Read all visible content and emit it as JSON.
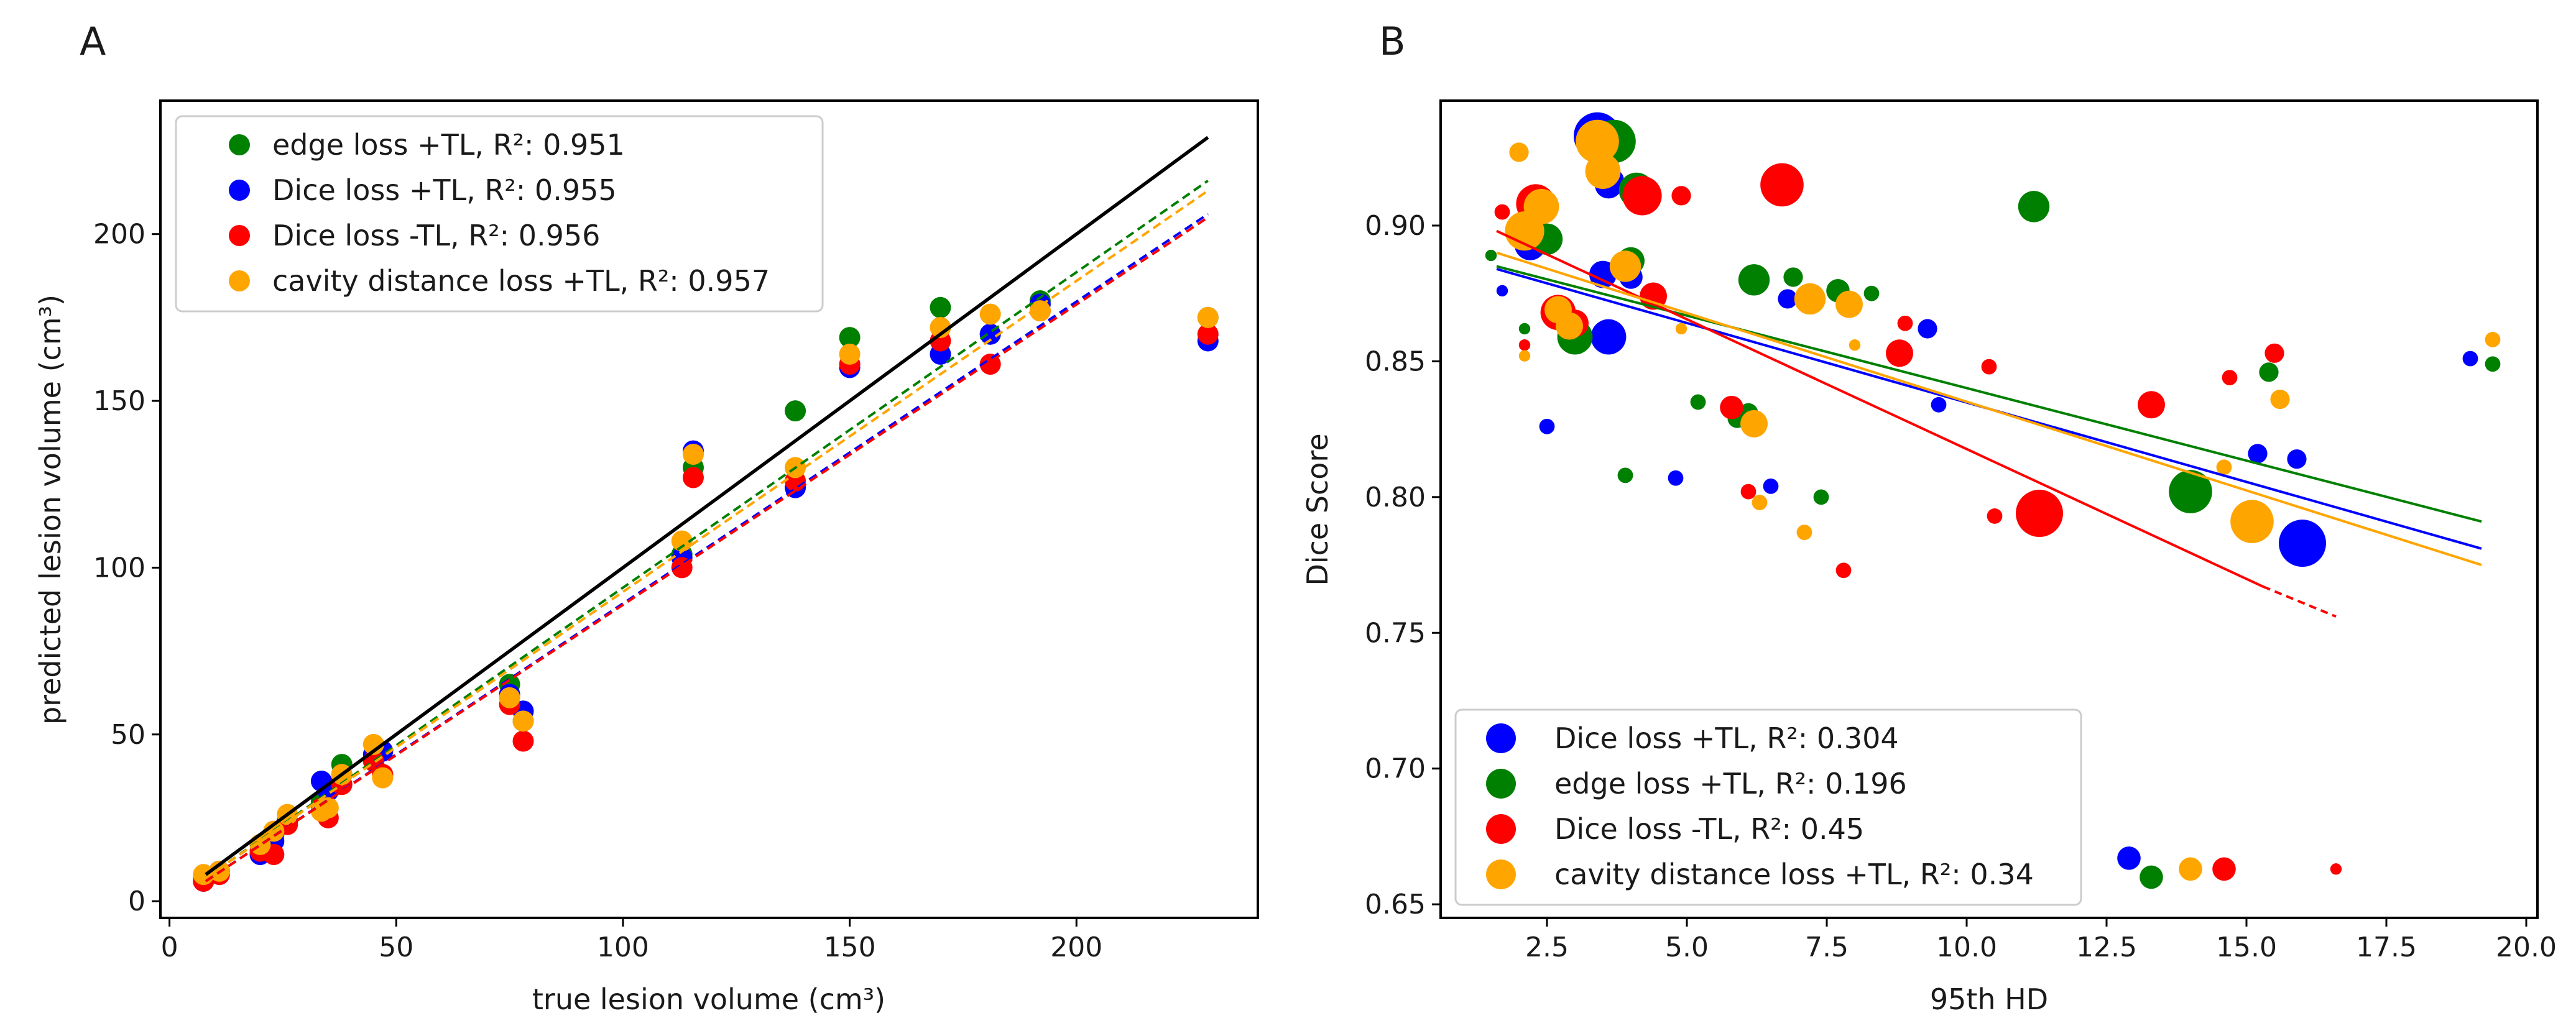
{
  "panel_labels": [
    "A",
    "B"
  ],
  "colors": {
    "green": "#008000",
    "blue": "#0000ff",
    "red": "#ff0000",
    "orange": "#ffa500",
    "black": "#000000"
  },
  "chart_data": [
    {
      "type": "scatter",
      "xlabel": "true lesion volume (cm³)",
      "ylabel": "predicted lesion volume (cm³)",
      "xlim": [
        -2,
        240
      ],
      "ylim": [
        -5,
        240
      ],
      "xticks": [
        0,
        50,
        100,
        150,
        200
      ],
      "yticks": [
        0,
        50,
        100,
        150,
        200
      ],
      "x": [
        7.5,
        11,
        20,
        23,
        26,
        33.5,
        35,
        38,
        45,
        47,
        75,
        78,
        113,
        115.5,
        138,
        150,
        170,
        181,
        192,
        229
      ],
      "series": [
        {
          "name": "edge loss +TL, R²: 0.951",
          "color": "#008000",
          "values": [
            7,
            9,
            17,
            20,
            24,
            30,
            34,
            41,
            42,
            38,
            65,
            54,
            104,
            130,
            147,
            169,
            178,
            170,
            180,
            175
          ],
          "fit": {
            "x": [
              8,
              229
            ],
            "y": [
              7,
              216
            ]
          }
        },
        {
          "name": "Dice loss +TL, R²: 0.955",
          "color": "#0000ff",
          "values": [
            6,
            9,
            14,
            18,
            24,
            36,
            33,
            38,
            44,
            45,
            62,
            57,
            103,
            135,
            124,
            160,
            164,
            170,
            179,
            168
          ],
          "fit": {
            "x": [
              8,
              229
            ],
            "y": [
              6,
              206
            ]
          }
        },
        {
          "name": "Dice loss -TL, R²: 0.956",
          "color": "#ff0000",
          "values": [
            6,
            8,
            15,
            14,
            23,
            28,
            25,
            35,
            42,
            38,
            59,
            48,
            100,
            127,
            126,
            161,
            168,
            161,
            177,
            170
          ],
          "fit": {
            "x": [
              8,
              229
            ],
            "y": [
              6,
              205
            ]
          }
        },
        {
          "name": "cavity distance loss +TL, R²: 0.957",
          "color": "#ffa500",
          "values": [
            8,
            9,
            17,
            21,
            26,
            27,
            28,
            38,
            47,
            37,
            61,
            54,
            108,
            134,
            130,
            164,
            172,
            176,
            177,
            175
          ],
          "fit": {
            "x": [
              8,
              229
            ],
            "y": [
              7,
              213
            ]
          }
        }
      ],
      "identity_line": {
        "x": [
          8,
          229
        ],
        "y": [
          8,
          229
        ],
        "color": "#000000"
      },
      "legend": "top-left",
      "grid": false
    },
    {
      "type": "scatter",
      "xlabel": "95th HD",
      "ylabel": "Dice Score",
      "xlim": [
        0.6,
        20.2
      ],
      "ylim": [
        0.645,
        0.946
      ],
      "xticks": [
        2.5,
        5.0,
        7.5,
        10.0,
        12.5,
        15.0,
        17.5,
        20.0
      ],
      "xticklabels": [
        "2.5",
        "5.0",
        "7.5",
        "10.0",
        "12.5",
        "15.0",
        "17.5",
        "20.0"
      ],
      "yticks": [
        0.65,
        0.7,
        0.75,
        0.8,
        0.85,
        0.9
      ],
      "yticklabels": [
        "0.65",
        "0.70",
        "0.75",
        "0.80",
        "0.85",
        "0.90"
      ],
      "series": [
        {
          "name": "Dice loss +TL, R²: 0.304",
          "color": "#0000ff",
          "x": [
            3.4,
            3.6,
            3.5,
            2.2,
            3.6,
            4.0,
            6.8,
            9.3,
            3.7,
            9.5,
            2.5,
            4.8,
            6.5,
            12.9,
            15.2,
            15.9,
            16.0,
            19.0,
            1.7
          ],
          "values": [
            0.933,
            0.915,
            0.882,
            0.893,
            0.859,
            0.881,
            0.873,
            0.862,
            0.917,
            0.834,
            0.826,
            0.807,
            0.804,
            0.667,
            0.816,
            0.814,
            0.783,
            0.851,
            0.876
          ],
          "sizes": [
            10,
            5,
            5,
            6,
            7,
            4,
            3,
            3,
            3,
            2,
            2,
            2,
            2,
            4,
            3,
            3,
            10,
            2,
            1
          ],
          "fit": {
            "x": [
              1.6,
              19.2
            ],
            "y": [
              0.884,
              0.781
            ],
            "dashed_to": null
          }
        },
        {
          "name": "edge loss +TL, R²: 0.196",
          "color": "#008000",
          "x": [
            3.7,
            4.1,
            2.5,
            3.0,
            6.2,
            6.9,
            7.7,
            8.3,
            11.2,
            6.1,
            5.9,
            3.9,
            7.4,
            5.2,
            14.0,
            13.3,
            15.4,
            19.4,
            1.5,
            2.1,
            4.0
          ],
          "values": [
            0.931,
            0.913,
            0.895,
            0.859,
            0.88,
            0.881,
            0.876,
            0.875,
            0.907,
            0.831,
            0.829,
            0.808,
            0.8,
            0.835,
            0.802,
            0.66,
            0.846,
            0.849,
            0.889,
            0.862,
            0.887
          ],
          "sizes": [
            9,
            7,
            6,
            7,
            6,
            3,
            4,
            2,
            6,
            3,
            3,
            2,
            2,
            2,
            9,
            4,
            3,
            2,
            1,
            1,
            5
          ],
          "fit": {
            "x": [
              1.6,
              19.2
            ],
            "y": [
              0.885,
              0.791
            ]
          }
        },
        {
          "name": "Dice loss -TL, R²: 0.45",
          "color": "#ff0000",
          "x": [
            2.3,
            4.2,
            4.9,
            6.7,
            2.7,
            3.0,
            4.4,
            8.8,
            8.9,
            5.8,
            6.1,
            7.8,
            10.4,
            10.5,
            11.3,
            13.3,
            15.5,
            14.7,
            14.6,
            16.6,
            1.7,
            2.1
          ],
          "values": [
            0.908,
            0.911,
            0.911,
            0.915,
            0.868,
            0.864,
            0.874,
            0.853,
            0.864,
            0.833,
            0.802,
            0.773,
            0.848,
            0.793,
            0.794,
            0.834,
            0.853,
            0.844,
            0.663,
            0.663,
            0.905,
            0.856
          ],
          "sizes": [
            8,
            8,
            3,
            9,
            7,
            5,
            5,
            5,
            2,
            4,
            2,
            2,
            2,
            2,
            10,
            5,
            3,
            2,
            4,
            1,
            2,
            1
          ],
          "fit": {
            "x": [
              1.6,
              15.3
            ],
            "y": [
              0.898,
              0.767
            ],
            "dashed": {
              "x": [
                15.3,
                16.6
              ],
              "y": [
                0.767,
                0.756
              ]
            }
          }
        },
        {
          "name": "cavity distance loss +TL, R²: 0.34",
          "color": "#ffa500",
          "x": [
            3.4,
            3.5,
            2.1,
            2.4,
            3.9,
            2.7,
            2.9,
            7.2,
            7.9,
            6.2,
            6.3,
            7.1,
            14.0,
            15.1,
            14.6,
            15.6,
            19.4,
            2.0,
            4.9,
            8.0,
            2.1
          ],
          "values": [
            0.931,
            0.92,
            0.898,
            0.907,
            0.885,
            0.869,
            0.863,
            0.873,
            0.871,
            0.827,
            0.798,
            0.787,
            0.663,
            0.791,
            0.811,
            0.836,
            0.858,
            0.927,
            0.862,
            0.856,
            0.852
          ],
          "sizes": [
            9,
            7,
            8,
            7,
            6,
            5,
            5,
            6,
            5,
            5,
            2,
            2,
            4,
            9,
            2,
            3,
            2,
            3,
            1,
            1,
            1
          ],
          "fit": {
            "x": [
              1.6,
              19.2
            ],
            "y": [
              0.89,
              0.775
            ]
          }
        }
      ],
      "legend": "bottom-left",
      "grid": false
    }
  ]
}
